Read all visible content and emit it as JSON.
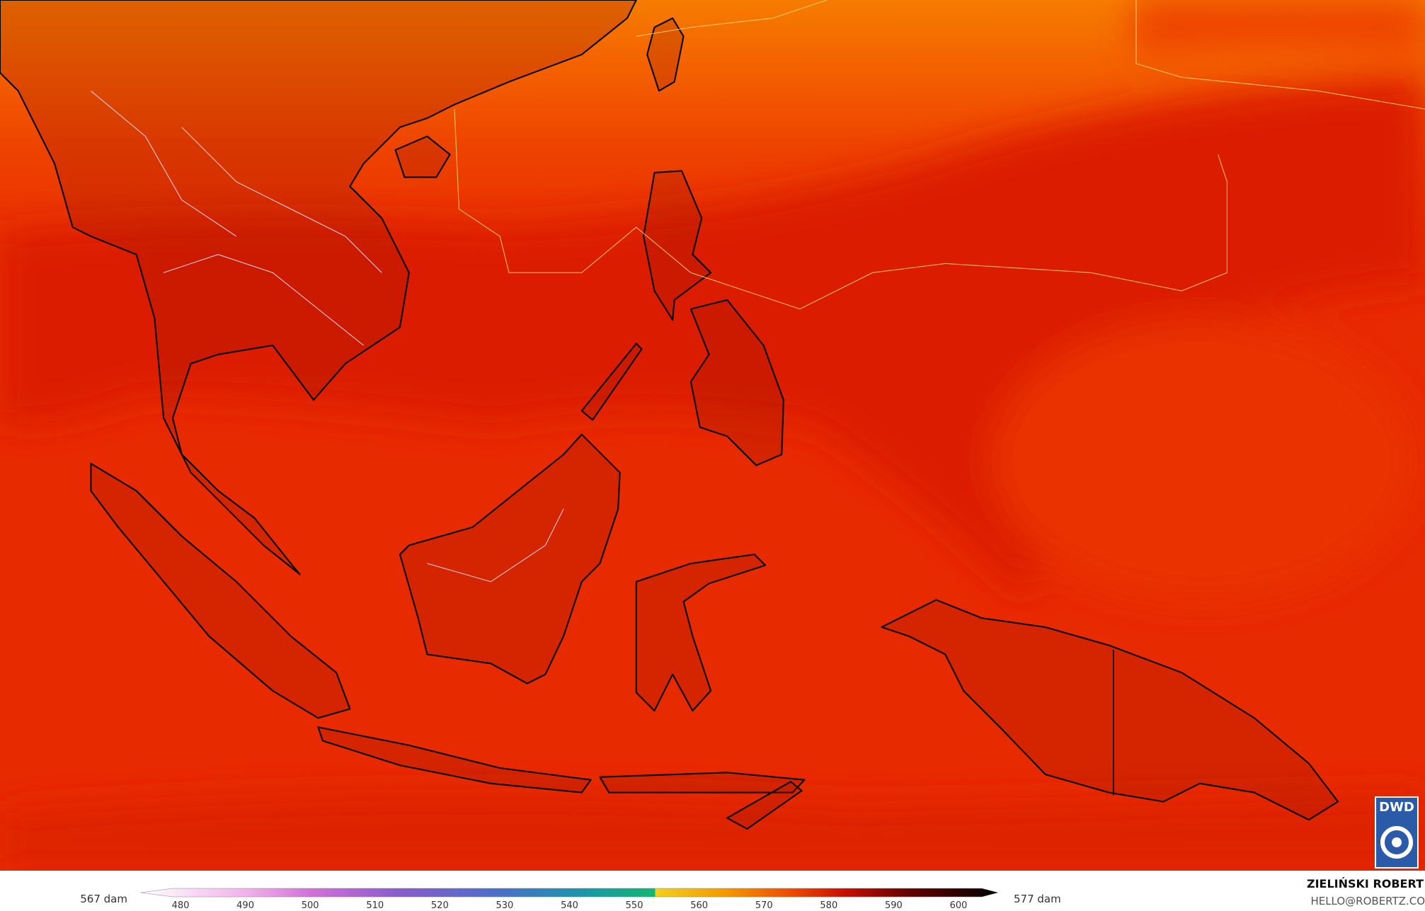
{
  "logo": "DWD",
  "legend": {
    "left_label": "567 dam",
    "right_label": "577 dam",
    "ticks": [
      480,
      490,
      500,
      510,
      520,
      530,
      540,
      550,
      560,
      570,
      580,
      590,
      600
    ]
  },
  "credit": {
    "name": "ZIELIŃSKI ROBERT",
    "email": "HELLO@ROBERTZ.CO"
  }
}
